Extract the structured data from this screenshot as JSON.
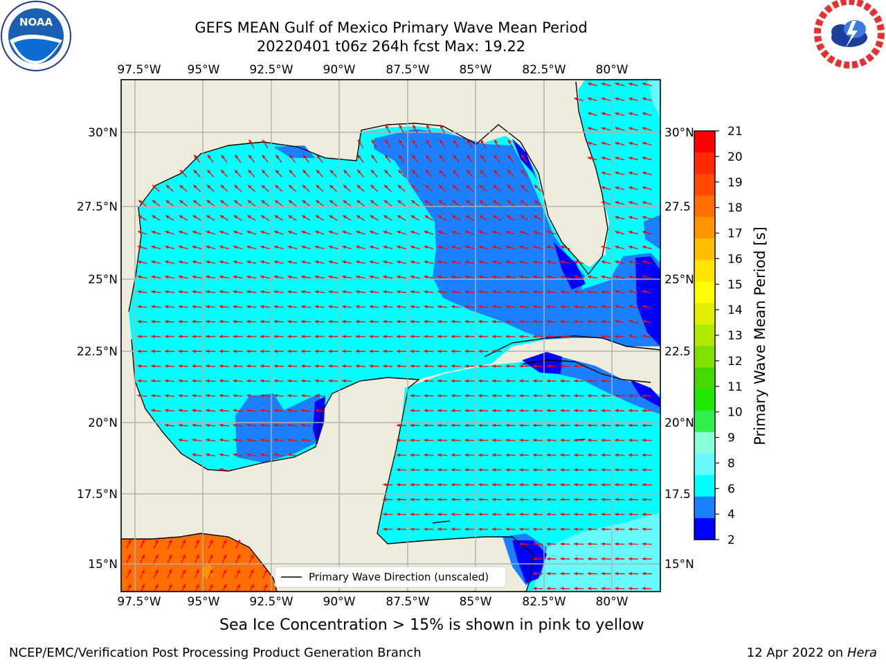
{
  "header": {
    "title_line1": "GEFS MEAN Gulf of Mexico Primary Wave Mean Period",
    "title_line2": "20220401 t06z 264h fcst   Max: 19.22"
  },
  "logos": {
    "noaa_text": "NOAA",
    "noaa_ring": "NATIONAL OCEANIC AND ATMOSPHERIC ADMINISTRATION · U.S. DEPARTMENT OF COMMERCE",
    "nws_ring": "NATIONAL WEATHER SERVICE"
  },
  "map": {
    "lon_labels": [
      "97.5°W",
      "95°W",
      "92.5°W",
      "90°W",
      "87.5°W",
      "85°W",
      "82.5°W",
      "80°W"
    ],
    "lat_labels": [
      "30°N",
      "27.5°N",
      "25°N",
      "22.5°N",
      "20°N",
      "17.5°N",
      "15°N"
    ],
    "lat_labels_right": [
      "30°N",
      "27.5",
      "25°N",
      "22.5",
      "20°N",
      "17.5",
      "15°N"
    ],
    "legend_label": "Primary Wave Direction (unscaled)"
  },
  "colorbar": {
    "label": "Primary Wave Mean Period [s]",
    "ticks": [
      "21",
      "20",
      "19",
      "18",
      "17",
      "16",
      "15",
      "14",
      "13",
      "12",
      "11",
      "10",
      "9",
      "8",
      "6",
      "4",
      "2"
    ],
    "colors_top_to_bottom": [
      "#ff0000",
      "#ff2a00",
      "#ff4a00",
      "#ff6e00",
      "#ff9600",
      "#ffbe00",
      "#ffe600",
      "#ffff00",
      "#e0f000",
      "#b0ea00",
      "#80e000",
      "#44d800",
      "#22e800",
      "#30f050",
      "#88ffd8",
      "#66fafa",
      "#00ffff",
      "#1a80ff",
      "#0000ff"
    ]
  },
  "colors": {
    "land": "#efecdc",
    "ocean_8s": "#00ffff",
    "ocean_6s": "#1a80ff",
    "ocean_4s": "#0000ff",
    "ocean_9s": "#66fafa",
    "pacific_18s": "#ff6e00",
    "arrow": "#ff0000"
  },
  "notes": {
    "sea_ice": "Sea Ice Concentration > 15% is shown in pink to yellow"
  },
  "footer": {
    "left": "NCEP/EMC/Verification Post Processing Product Generation Branch",
    "date": "12 Apr 2022 on",
    "machine": "Hera"
  }
}
